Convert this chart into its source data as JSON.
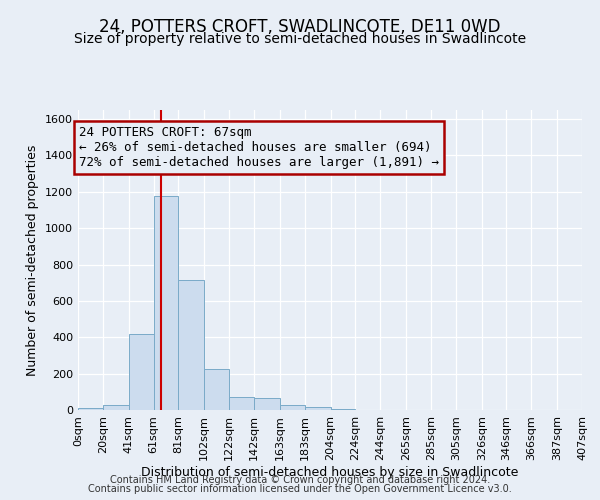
{
  "title": "24, POTTERS CROFT, SWADLINCOTE, DE11 0WD",
  "subtitle": "Size of property relative to semi-detached houses in Swadlincote",
  "xlabel": "Distribution of semi-detached houses by size in Swadlincote",
  "ylabel": "Number of semi-detached properties",
  "footnote1": "Contains HM Land Registry data © Crown copyright and database right 2024.",
  "footnote2": "Contains public sector information licensed under the Open Government Licence v3.0.",
  "bin_edges": [
    0,
    20,
    41,
    61,
    81,
    102,
    122,
    142,
    163,
    183,
    204,
    224,
    244,
    265,
    285,
    305,
    326,
    346,
    366,
    387,
    407
  ],
  "bin_labels": [
    "0sqm",
    "20sqm",
    "41sqm",
    "61sqm",
    "81sqm",
    "102sqm",
    "122sqm",
    "142sqm",
    "163sqm",
    "183sqm",
    "204sqm",
    "224sqm",
    "244sqm",
    "265sqm",
    "285sqm",
    "305sqm",
    "326sqm",
    "346sqm",
    "366sqm",
    "387sqm",
    "407sqm"
  ],
  "bar_heights": [
    10,
    25,
    420,
    1175,
    715,
    225,
    70,
    65,
    25,
    15,
    5,
    2,
    2,
    1,
    0,
    0,
    0,
    0,
    0,
    0
  ],
  "bar_color": "#ccdcee",
  "bar_edge_color": "#7aaac8",
  "property_value": 67,
  "property_label": "24 POTTERS CROFT: 67sqm",
  "pct_smaller": 26,
  "count_smaller": 694,
  "pct_larger": 72,
  "count_larger": 1891,
  "vline_color": "#cc0000",
  "annotation_box_color": "#aa0000",
  "ylim": [
    0,
    1650
  ],
  "yticks": [
    0,
    200,
    400,
    600,
    800,
    1000,
    1200,
    1400,
    1600
  ],
  "background_color": "#e8eef6",
  "grid_color": "#ffffff",
  "title_fontsize": 12,
  "subtitle_fontsize": 10,
  "axis_label_fontsize": 9,
  "tick_fontsize": 8,
  "annotation_fontsize": 9,
  "footnote_fontsize": 7
}
